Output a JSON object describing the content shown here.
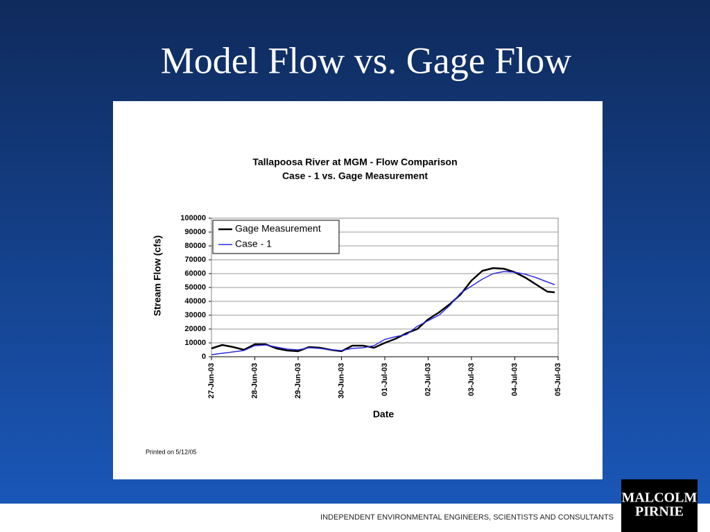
{
  "slide": {
    "title": "Model Flow vs. Gage Flow",
    "footer": "INDEPENDENT ENVIRONMENTAL ENGINEERS, SCIENTISTS AND CONSULTANTS",
    "logo": [
      "MALCOLM",
      "PIRNIE"
    ]
  },
  "chart_data": {
    "type": "line",
    "title": "Tallapoosa River at MGM - Flow Comparison",
    "subtitle": "Case - 1 vs. Gage Measurement",
    "x_label": "Date",
    "y_label": "Stream Flow (cfs)",
    "note": "Printed on 5/12/05",
    "x": [
      0,
      0.25,
      0.5,
      0.75,
      1.0,
      1.25,
      1.5,
      1.75,
      2.0,
      2.25,
      2.5,
      2.75,
      3.0,
      3.25,
      3.5,
      3.75,
      4.0,
      4.25,
      4.5,
      4.75,
      5.0,
      5.25,
      5.5,
      5.75,
      6.0,
      6.25,
      6.5,
      6.75,
      7.0,
      7.25,
      7.5,
      7.75,
      7.92
    ],
    "series": [
      {
        "name": "Gage Measurement",
        "color": "#000000",
        "width": 2.5,
        "values": [
          6000,
          8500,
          7000,
          5000,
          9000,
          9000,
          6000,
          4500,
          4000,
          7000,
          6500,
          5000,
          4000,
          8000,
          8000,
          6500,
          10000,
          13000,
          17000,
          20000,
          27000,
          32000,
          38000,
          45000,
          55000,
          62000,
          64000,
          63500,
          61000,
          57000,
          52000,
          47000,
          46500
        ]
      },
      {
        "name": "Case - 1",
        "color": "#2b2bdc",
        "width": 1.5,
        "values": [
          1500,
          2500,
          3500,
          4500,
          8000,
          8500,
          7000,
          5500,
          5000,
          6500,
          6000,
          5000,
          4500,
          6000,
          6500,
          8000,
          12500,
          14500,
          16000,
          22000,
          26000,
          30000,
          37000,
          46000,
          51000,
          56000,
          60000,
          61500,
          61000,
          59500,
          57000,
          54000,
          52000
        ]
      }
    ],
    "xlim": [
      0,
      8
    ],
    "xticks": [
      {
        "value": 0,
        "label": "27-Jun-03"
      },
      {
        "value": 1,
        "label": "28-Jun-03"
      },
      {
        "value": 2,
        "label": "29-Jun-03"
      },
      {
        "value": 3,
        "label": "30-Jun-03"
      },
      {
        "value": 4,
        "label": "01-Jul-03"
      },
      {
        "value": 5,
        "label": "02-Jul-03"
      },
      {
        "value": 6,
        "label": "03-Jul-03"
      },
      {
        "value": 7,
        "label": "04-Jul-03"
      },
      {
        "value": 8,
        "label": "05-Jul-03"
      }
    ],
    "ylim": [
      0,
      100000
    ],
    "yticks": [
      0,
      10000,
      20000,
      30000,
      40000,
      50000,
      60000,
      70000,
      80000,
      90000,
      100000
    ],
    "grid": true,
    "legend": "upper left"
  }
}
